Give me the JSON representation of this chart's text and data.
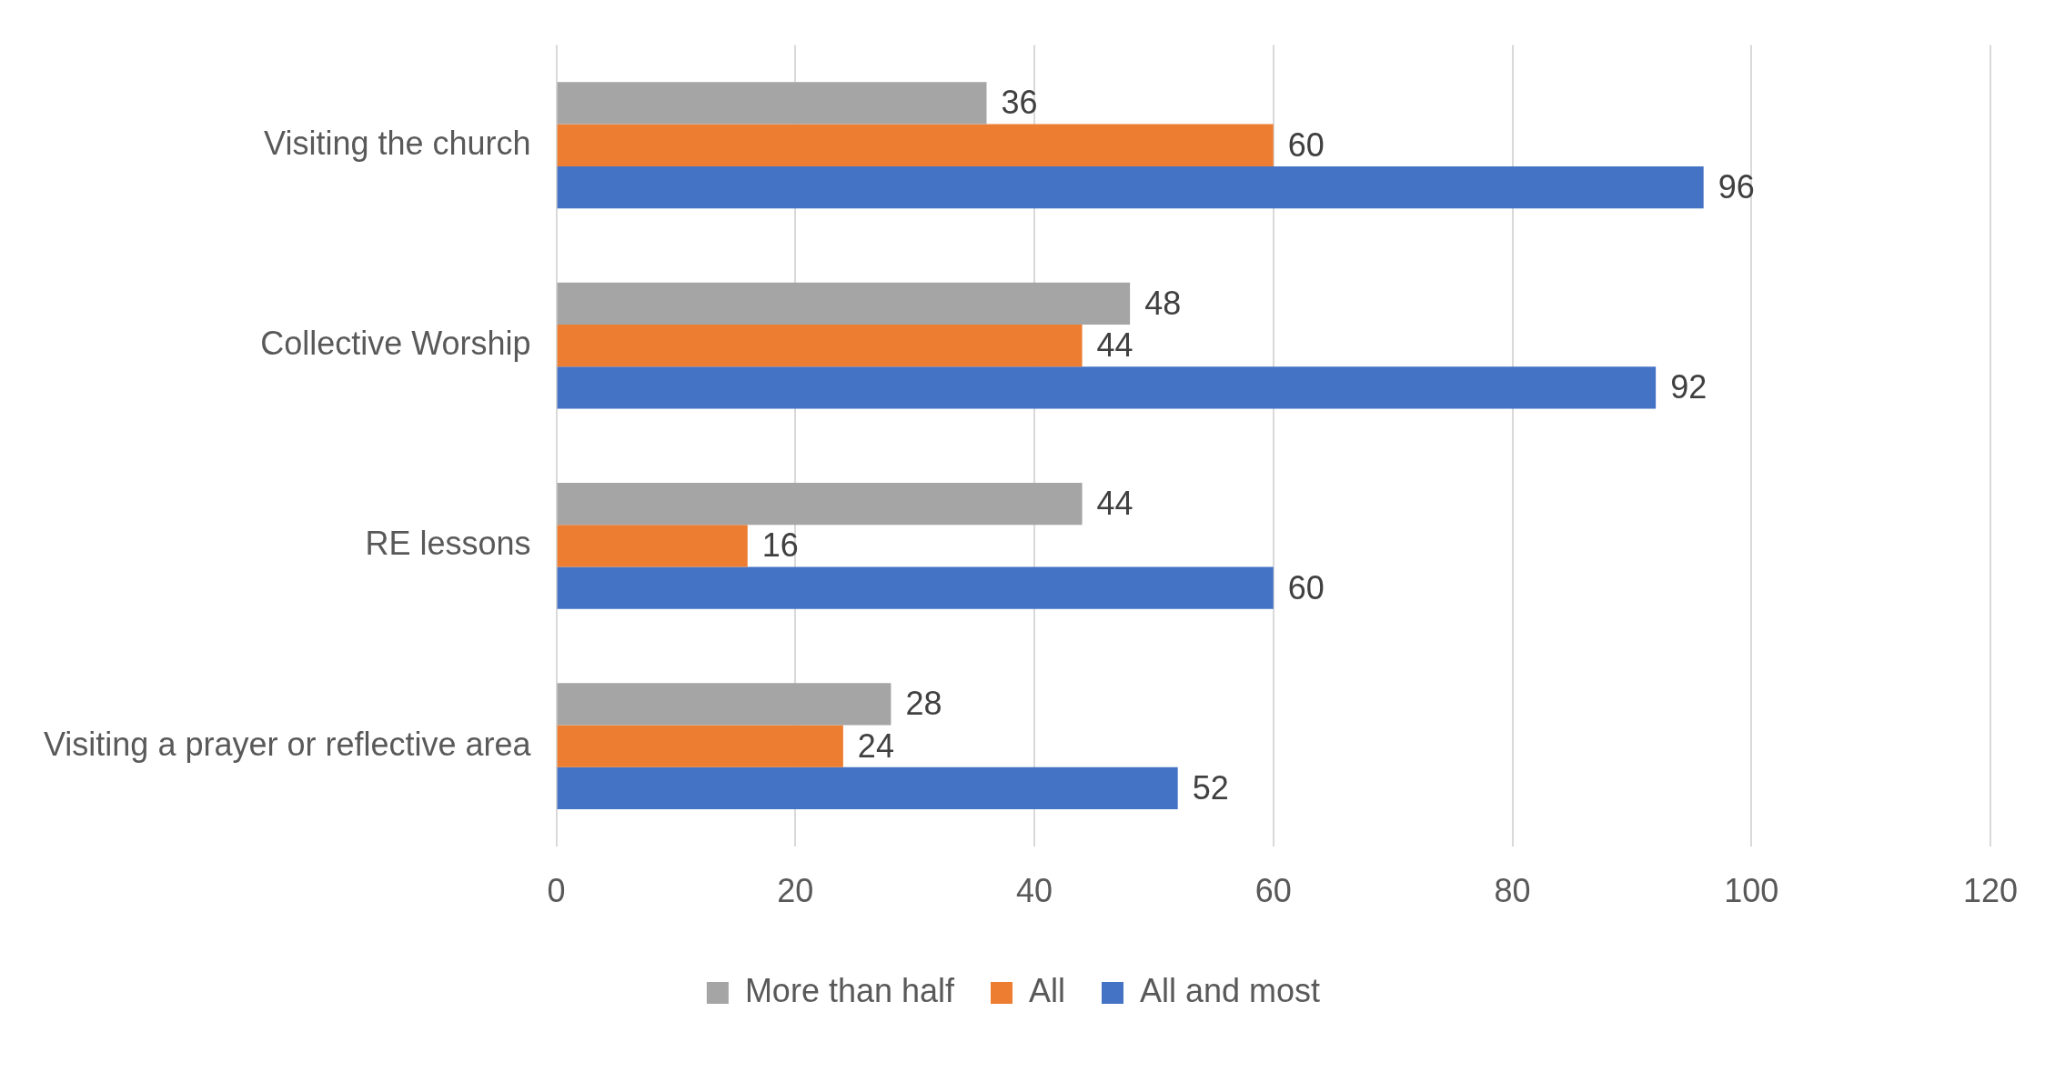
{
  "chart_data": {
    "type": "bar",
    "orientation": "horizontal",
    "categories": [
      "Visiting the church",
      "Collective Worship",
      "RE lessons",
      "Visiting a prayer or reflective area"
    ],
    "series": [
      {
        "name": "More than half",
        "color": "#a5a5a5",
        "values": [
          36,
          48,
          44,
          28
        ]
      },
      {
        "name": "All",
        "color": "#ed7d31",
        "values": [
          60,
          44,
          16,
          24
        ]
      },
      {
        "name": "All and most",
        "color": "#4472c4",
        "values": [
          96,
          92,
          60,
          52
        ]
      }
    ],
    "xlim": [
      0,
      120
    ],
    "xticks": [
      0,
      20,
      40,
      60,
      80,
      100,
      120
    ],
    "grid": "x",
    "legend": "bottom",
    "data_labels": true
  }
}
